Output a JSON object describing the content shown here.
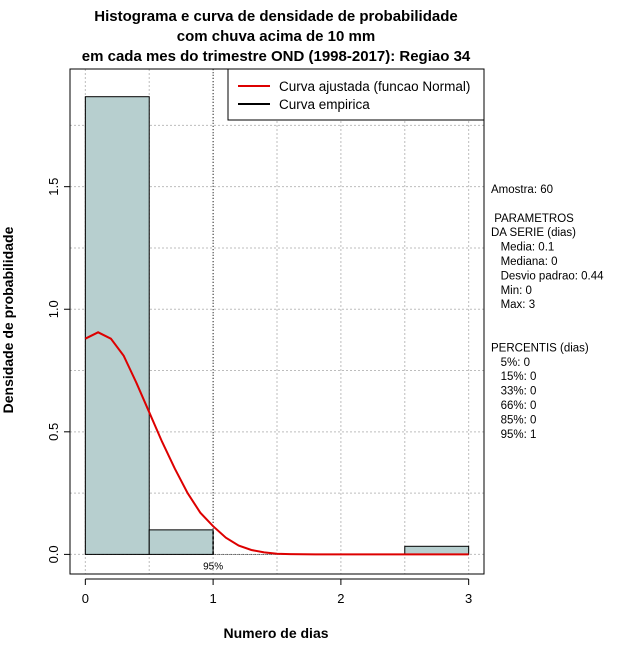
{
  "chart_data": {
    "type": "histogram",
    "title_lines": [
      "Histograma e curva de densidade de probabilidade",
      "com chuva acima de 10 mm",
      "em cada mes do trimestre OND (1998-2017): Regiao 34"
    ],
    "xlabel": "Numero de dias",
    "ylabel": "Densidade de probabilidade",
    "xlim": [
      -0.12,
      3.12
    ],
    "ylim": [
      -0.08,
      1.98
    ],
    "x_ticks": [
      0,
      1,
      2,
      3
    ],
    "y_ticks": [
      0.0,
      0.5,
      1.0,
      1.5
    ],
    "x_tick_labels": [
      "0",
      "1",
      "2",
      "3"
    ],
    "y_tick_labels": [
      "0.0",
      "0.5",
      "1.0",
      "1.5"
    ],
    "grid": true,
    "bars": [
      {
        "x0": 0.0,
        "x1": 0.5,
        "density": 1.867
      },
      {
        "x0": 0.5,
        "x1": 1.0,
        "density": 0.1
      },
      {
        "x0": 1.0,
        "x1": 1.5,
        "density": 0.0
      },
      {
        "x0": 1.5,
        "x1": 2.0,
        "density": 0.0
      },
      {
        "x0": 2.0,
        "x1": 2.5,
        "density": 0.0
      },
      {
        "x0": 2.5,
        "x1": 3.0,
        "density": 0.033
      }
    ],
    "bar_color": "#b7cfcf",
    "fitted_curve": {
      "name": "Curva ajustada (funcao Normal)",
      "color": "#dd0000",
      "x": [
        0.0,
        0.1,
        0.2,
        0.3,
        0.4,
        0.5,
        0.6,
        0.7,
        0.8,
        0.9,
        1.0,
        1.1,
        1.2,
        1.3,
        1.4,
        1.5,
        1.6,
        1.8,
        2.0,
        2.2,
        2.5,
        2.8,
        3.0
      ],
      "y": [
        0.88,
        0.906,
        0.88,
        0.81,
        0.7,
        0.58,
        0.46,
        0.35,
        0.25,
        0.17,
        0.115,
        0.068,
        0.036,
        0.018,
        0.008,
        0.003,
        0.001,
        0.0,
        0.0,
        0.0,
        0.0,
        0.0,
        0.0
      ]
    },
    "empirical_curve": {
      "name": "Curva empirica",
      "color": "#000000"
    },
    "percentile_marker": {
      "x": 1.0,
      "label": "95%"
    },
    "legend_position": "top-right",
    "side_panel": [
      "Amostra: 60",
      "",
      " PARAMETROS",
      "DA SERIE (dias)",
      "   Media: 0.1",
      "   Mediana: 0",
      "   Desvio padrao: 0.44",
      "   Min: 0",
      "   Max: 3",
      "",
      "",
      "PERCENTIS (dias)",
      "   5%: 0",
      "   15%: 0",
      "   33%: 0",
      "   66%: 0",
      "   85%: 0",
      "   95%: 1"
    ]
  }
}
